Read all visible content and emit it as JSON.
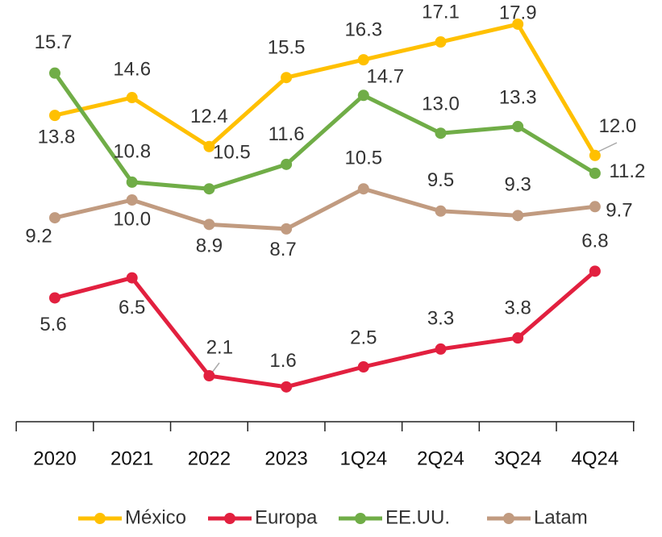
{
  "chart_data": {
    "type": "line",
    "categories": [
      "2020",
      "2021",
      "2022",
      "2023",
      "1Q24",
      "2Q24",
      "3Q24",
      "4Q24"
    ],
    "series": [
      {
        "name": "México",
        "color": "#FFC000",
        "values": [
          13.8,
          14.6,
          12.4,
          15.5,
          16.3,
          17.1,
          17.9,
          12.0
        ],
        "value_labels": [
          "13.8",
          "14.6",
          "12.4",
          "15.5",
          "16.3",
          "17.1",
          "17.9",
          "12.0"
        ]
      },
      {
        "name": "Europa",
        "color": "#E2203F",
        "values": [
          5.6,
          6.5,
          2.1,
          1.6,
          2.5,
          3.3,
          3.8,
          6.8
        ],
        "value_labels": [
          "5.6",
          "6.5",
          "2.1",
          "1.6",
          "2.5",
          "3.3",
          "3.8",
          "6.8"
        ]
      },
      {
        "name": "EE.UU.",
        "color": "#70AD47",
        "values": [
          15.7,
          10.8,
          10.5,
          11.6,
          14.7,
          13.0,
          13.3,
          11.2
        ],
        "value_labels": [
          "15.7",
          "10.8",
          "10.5",
          "11.6",
          "14.7",
          "13.0",
          "13.3",
          "11.2"
        ]
      },
      {
        "name": "Latam",
        "color": "#C19B80",
        "values": [
          9.2,
          10.0,
          8.9,
          8.7,
          10.5,
          9.5,
          9.3,
          9.7
        ],
        "value_labels": [
          "9.2",
          "10.0",
          "8.9",
          "8.7",
          "10.5",
          "9.5",
          "9.3",
          "9.7"
        ]
      }
    ],
    "legend": "bottom"
  }
}
